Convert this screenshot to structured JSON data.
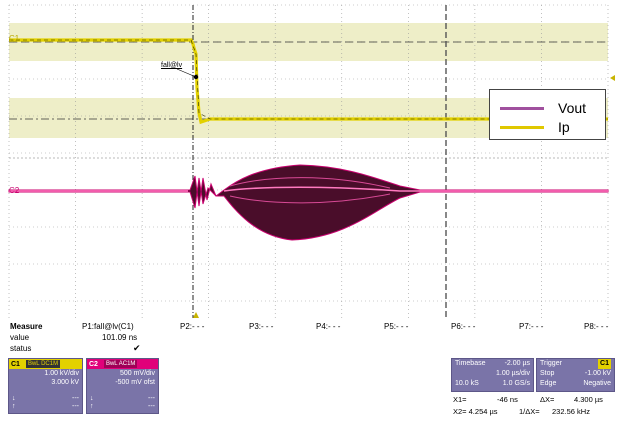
{
  "scope": {
    "c1_marker": "C1",
    "c2_marker": "C2",
    "cursor_label": "fall@lv",
    "legend": [
      {
        "name": "Vout",
        "color": "#a0509e"
      },
      {
        "name": "Ip",
        "color": "#e0c800"
      }
    ],
    "colors": {
      "c1_trace": "#e3d100",
      "c2_trace": "#c8006e",
      "band": "#eeeec8",
      "grid": "#999999"
    }
  },
  "measure": {
    "title": "Measure",
    "param_label": "P1:fall@lv(C1)",
    "value_label": "value",
    "value": "101.09 ns",
    "status_label": "status",
    "status_icon": "check-icon",
    "status_glyph": "✔",
    "slots": [
      "P2:- - -",
      "P3:- - -",
      "P4:- - -",
      "P5:- - -",
      "P6:- - -",
      "P7:- - -",
      "P8:- - -"
    ]
  },
  "channels": [
    {
      "tag": "C1",
      "chip": "BwL DC1M",
      "line1": "1.00 kV/div",
      "line2": "3.000 kV",
      "down": "---",
      "up": "---",
      "color": "#e3d100"
    },
    {
      "tag": "C2",
      "chip": "BwL AC1M",
      "line1": "500 mV/div",
      "line2": "-500 mV ofst",
      "down": "---",
      "up": "---",
      "color": "#e0007a"
    }
  ],
  "timebase": {
    "label": "Timebase",
    "offset": "-2.00 µs",
    "div": "1.00 µs/div",
    "samples": "10.0 kS",
    "rate": "1.0 GS/s"
  },
  "trigger": {
    "label": "Trigger",
    "chan": "C1",
    "mode": "Stop",
    "level": "-1.00 kV",
    "type": "Edge",
    "slope": "Negative"
  },
  "cursors": {
    "x1": "X1=",
    "x1_val": "-46 ns",
    "dx": "ΔX=",
    "dx_val": "4.300 µs",
    "x2": "X2= 4.254 µs",
    "inv": "1/ΔX=",
    "inv_val": "232.56 kHz"
  }
}
